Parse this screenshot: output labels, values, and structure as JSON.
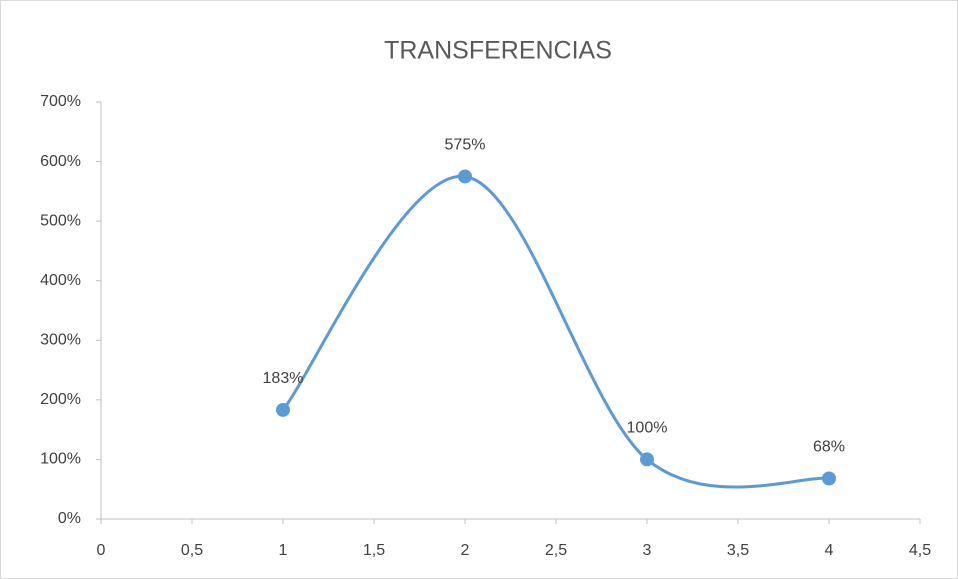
{
  "chart_data": {
    "type": "line",
    "title": "TRANSFERENCIAS",
    "x": [
      1,
      2,
      3,
      4
    ],
    "values": [
      183,
      575,
      100,
      68
    ],
    "value_labels": [
      "183%",
      "575%",
      "100%",
      "68%"
    ],
    "color": "#5b9bd5",
    "smooth": true,
    "xlim": [
      0,
      4.5
    ],
    "xticks": [
      0,
      {
        "value": 0.5,
        "label": "0,5"
      },
      1,
      {
        "value": 1.5,
        "label": "1,5"
      },
      2,
      {
        "value": 2.5,
        "label": "2,5"
      },
      3,
      {
        "value": 3.5,
        "label": "3,5"
      },
      4,
      {
        "value": 4.5,
        "label": "4,5"
      }
    ],
    "ylim": [
      0,
      700
    ],
    "yticks": [
      {
        "value": 0,
        "label": "0%"
      },
      {
        "value": 100,
        "label": "100%"
      },
      {
        "value": 200,
        "label": "200%"
      },
      {
        "value": 300,
        "label": "300%"
      },
      {
        "value": 400,
        "label": "400%"
      },
      {
        "value": 500,
        "label": "500%"
      },
      {
        "value": 600,
        "label": "600%"
      },
      {
        "value": 700,
        "label": "700%"
      }
    ],
    "grid": false
  }
}
